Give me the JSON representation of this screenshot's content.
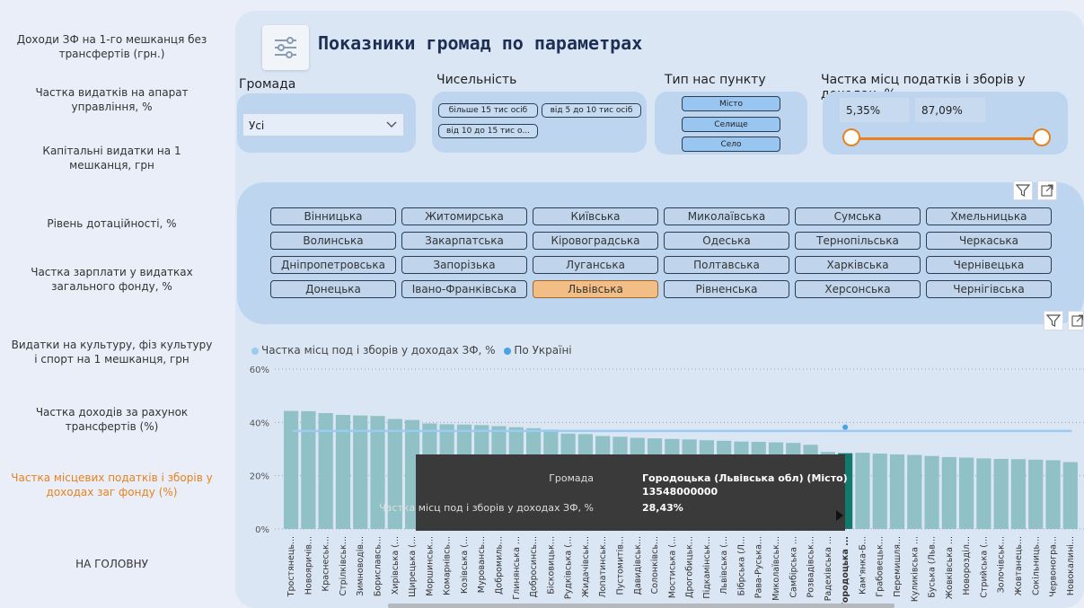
{
  "nav": {
    "items": [
      {
        "label": "Доходи ЗФ на 1-го мешканця без трансфертів (грн.)",
        "active": false
      },
      {
        "label": "Частка видатків на апарат управління, %",
        "active": false
      },
      {
        "label": "Капітальні видатки на 1 мешканця, грн",
        "active": false
      },
      {
        "label": "Рівень дотаційності, %",
        "active": false
      },
      {
        "label": "Частка зарплати у видатках загального фонду, %",
        "active": false
      },
      {
        "label": "Видатки на культуру, фіз культуру і спорт на 1 мешканця, грн",
        "active": false
      },
      {
        "label": "Частка доходів за рахунок трансфертів (%)",
        "active": false
      },
      {
        "label": "Частка місцевих податків і зборів у доходах заг фонду (%)",
        "active": true
      },
      {
        "label": "НА ГОЛОВНУ",
        "active": false
      }
    ]
  },
  "header": {
    "title": "Показники громад по параметрах",
    "icon": "sliders-icon"
  },
  "filters": {
    "hromada": {
      "label": "Громада",
      "value": "Усі"
    },
    "population": {
      "label": "Чисельність",
      "options": [
        "більше 15 тис осіб",
        "від 5 до 10 тис осіб",
        "від 10 до 15 тис о..."
      ]
    },
    "settlement_type": {
      "label": "Тип нас пункту",
      "options": [
        "Місто",
        "Селище",
        "Село"
      ]
    },
    "tax_share": {
      "label": "Частка місц податків і зборів у доходах, %",
      "min": "5,35%",
      "max": "87,09%"
    }
  },
  "regions": {
    "items": [
      "Вінницька",
      "Житомирська",
      "Київська",
      "Миколаївська",
      "Сумська",
      "Хмельницька",
      "Волинська",
      "Закарпатська",
      "Кіровоградська",
      "Одеська",
      "Тернопільська",
      "Черкаська",
      "Дніпропетровська",
      "Запорізька",
      "Луганська",
      "Полтавська",
      "Харківська",
      "Чернівецька",
      "Донецька",
      "Івано-Франківська",
      "Львівська",
      "Рівненська",
      "Херсонська",
      "Чернігівська"
    ],
    "selected": "Львівська"
  },
  "colors": {
    "bar": "#8fc1c6",
    "bar_highlight": "#127a6c",
    "avg_line": "#9ccbf0",
    "selected_region": "#f3be85",
    "accent": "#e8821e"
  },
  "chart_data": {
    "type": "bar",
    "legend_position": "top-left",
    "series": [
      {
        "name": "Частка місц под і зборів у доходах ЗФ, %",
        "color": "#8fc1c6"
      },
      {
        "name": "По Україні",
        "color": "#4aa3e0"
      }
    ],
    "ylim": [
      0,
      60
    ],
    "yticks": [
      "0%",
      "20%",
      "40%",
      "60%"
    ],
    "grid": true,
    "categories": [
      "Тростянець...",
      "Новояричів...",
      "Краснеськ...",
      "Стрілківськ...",
      "Зимноводів...",
      "Бориславсь...",
      "Хирівська (...",
      "Щирецька (...",
      "Моршинськ...",
      "Комарнівсь...",
      "Козівська (...",
      "Муровансь...",
      "Добромиль...",
      "Глинянська ...",
      "Добросинсь...",
      "Біскoвицьк...",
      "Рудківська (...",
      "Жидачівськ...",
      "Лопатинськ...",
      "Пустомитів...",
      "Давидівськ...",
      "Солонківсь...",
      "Мостиська (...",
      "Дрогобицьк...",
      "Підкамінськ...",
      "Львівська (...",
      "Бібрська (Л...",
      "Рава-Руська...",
      "Миколаївськ...",
      "Самбірська ...",
      "Розвадівськ...",
      "Радехівська ...",
      "Городоцька ...",
      "Кам'янка-Б...",
      "Грабовецьк...",
      "Перемишля...",
      "Куликівська ...",
      "Буська (Льв...",
      "Жовківська ...",
      "Новорозділ...",
      "Стрийська (...",
      "Золочівськ...",
      "Жовтанець...",
      "Сокільниць...",
      "Червоногра...",
      "Новокалині..."
    ],
    "values": [
      44.3,
      44.2,
      43.5,
      42.8,
      42.6,
      42.4,
      41.3,
      40.9,
      39.6,
      39.3,
      39.2,
      39.0,
      38.6,
      38.2,
      37.8,
      37.3,
      35.8,
      35.6,
      34.9,
      34.6,
      34.2,
      34.0,
      33.8,
      33.6,
      33.3,
      33.1,
      32.8,
      32.7,
      32.5,
      32.3,
      31.6,
      28.9,
      28.43,
      28.6,
      28.3,
      28.0,
      27.8,
      27.4,
      27.0,
      26.8,
      26.5,
      26.3,
      26.2,
      26.0,
      25.8,
      25.1
    ],
    "ukraine_average": 36.8,
    "highlight_index": 32,
    "tooltip": {
      "rows": [
        {
          "label": "Громада",
          "value": "Городоцька (Львівська обл) (Місто)"
        },
        {
          "label": "",
          "value": "13548000000"
        },
        {
          "label": "Частка місц под і зборів у доходах ЗФ, %",
          "value": "28,43%"
        }
      ]
    }
  }
}
